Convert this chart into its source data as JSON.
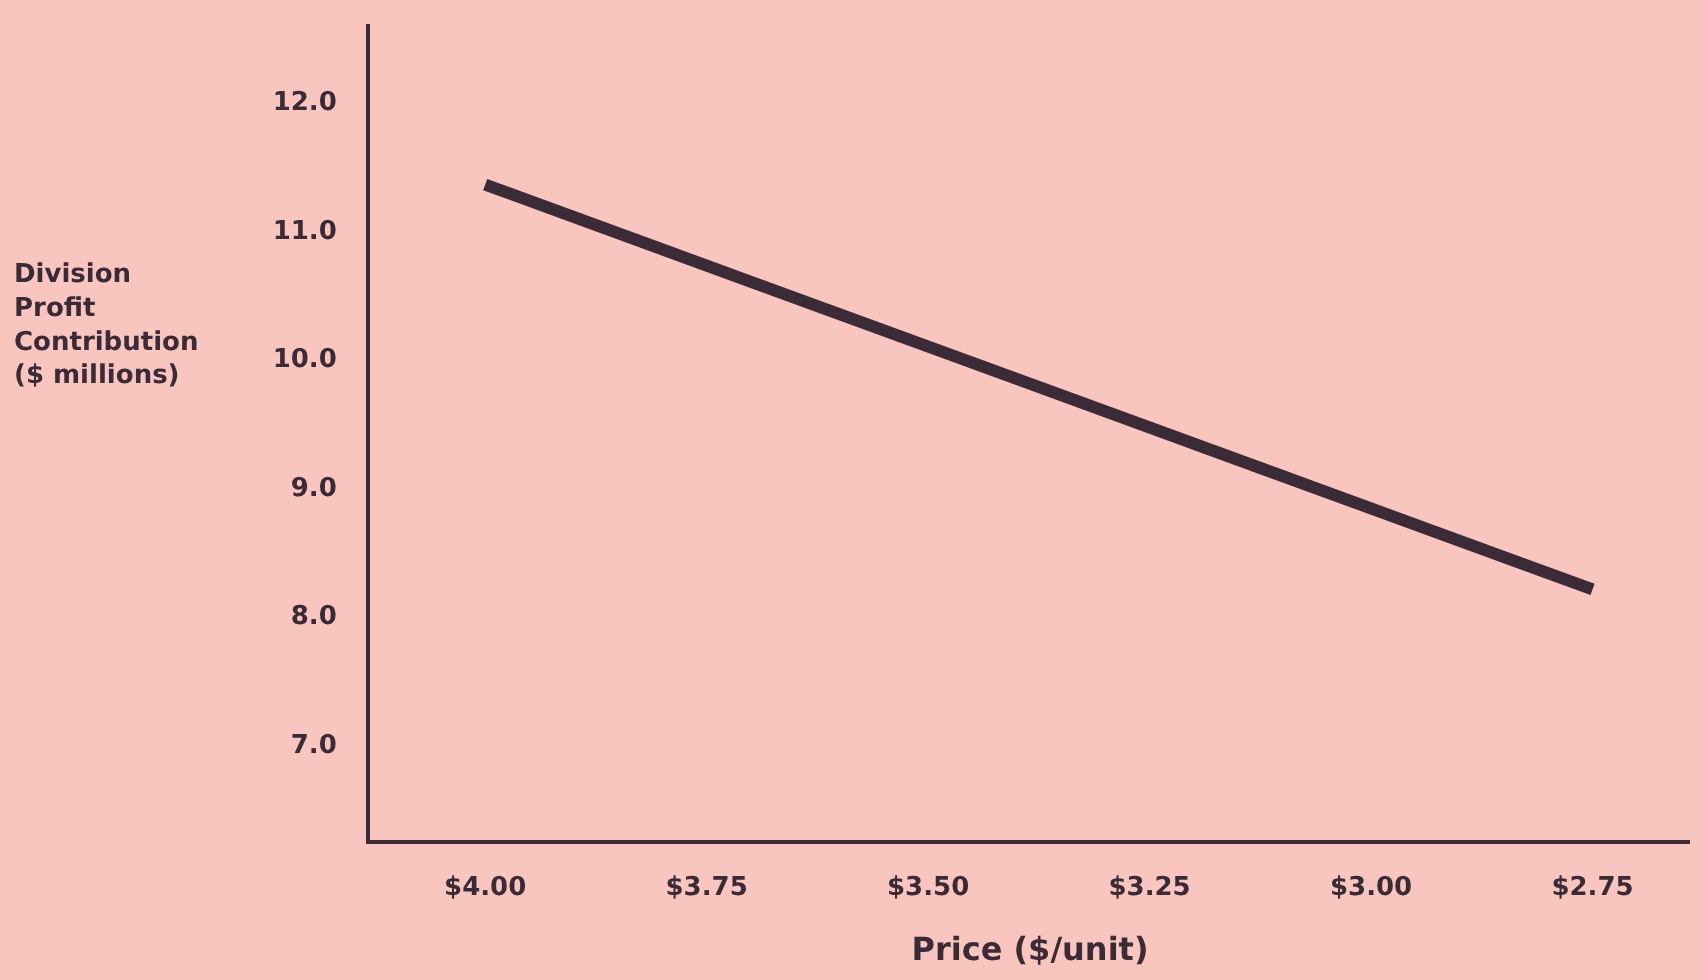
{
  "chart_data": {
    "type": "line",
    "xlabel": "Price ($/unit)",
    "ylabel": "Division\nProfit\nContribution\n($ millions)",
    "x": [
      4.0,
      2.75
    ],
    "series": [
      {
        "color": "#3b2b36",
        "values": [
          11.35,
          8.2
        ]
      }
    ],
    "xlim": [
      4.13,
      2.64
    ],
    "xticks": [
      {
        "value": 4.0,
        "label": "$4.00"
      },
      {
        "value": 3.75,
        "label": "$3.75"
      },
      {
        "value": 3.5,
        "label": "$3.50"
      },
      {
        "value": 3.25,
        "label": "$3.25"
      },
      {
        "value": 3.0,
        "label": "$3.00"
      },
      {
        "value": 2.75,
        "label": "$2.75"
      }
    ],
    "ylim": [
      6.25,
      12.6
    ],
    "yticks": [
      {
        "value": 7,
        "label": "7.0"
      },
      {
        "value": 8,
        "label": "8.0"
      },
      {
        "value": 9,
        "label": "9.0"
      },
      {
        "value": 10,
        "label": "10.0"
      },
      {
        "value": 11,
        "label": "11.0"
      },
      {
        "value": 12,
        "label": "12.0"
      }
    ],
    "grid": false,
    "marker": "none",
    "line_style": "solid"
  }
}
